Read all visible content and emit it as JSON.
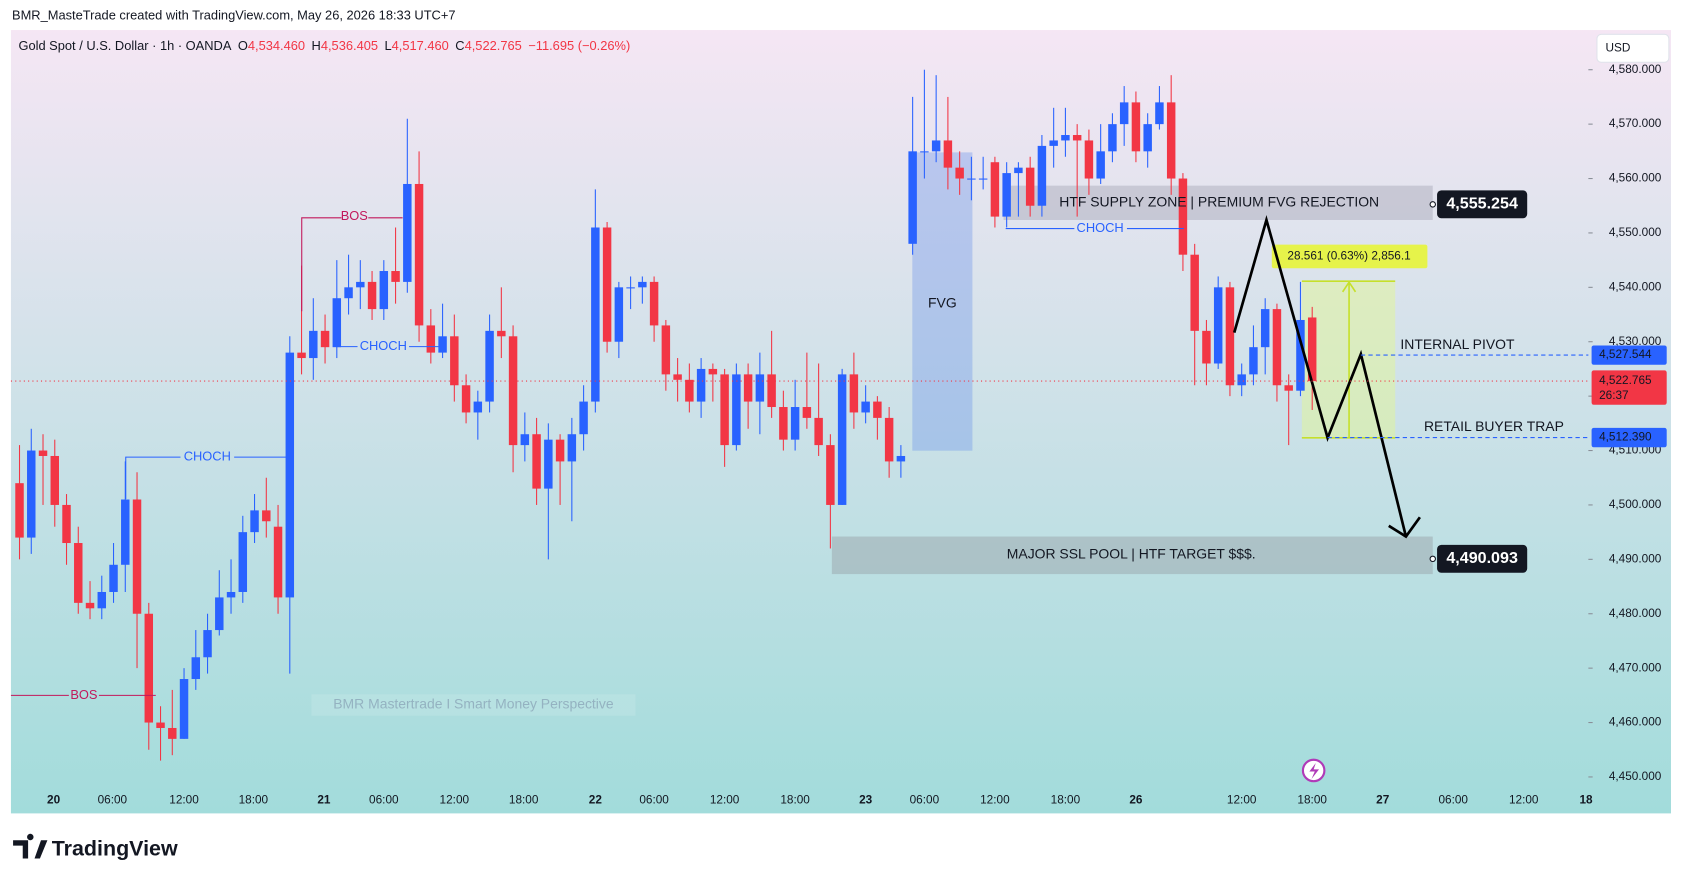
{
  "header": {
    "credit": "BMR_MasteTrade created with TradingView.com, May 26, 2026 18:33 UTC+7",
    "symbol": "Gold Spot / U.S. Dollar · 1h · OANDA",
    "ohlc": [
      {
        "key": "O",
        "value": "4,534.460"
      },
      {
        "key": "H",
        "value": "4,536.405"
      },
      {
        "key": "L",
        "value": "4,517.460"
      },
      {
        "key": "C",
        "value": "4,522.765"
      }
    ],
    "change": "−11.695 (−0.26%)",
    "currency": "USD"
  },
  "chart_data": {
    "type": "candlestick",
    "up_color": "#2962ff",
    "down_color": "#f23645",
    "open": [
      4504,
      4494,
      4510,
      4509,
      4500,
      4493,
      4482,
      4481,
      4484,
      4489,
      4501,
      4480,
      4460,
      4459,
      4457,
      4468,
      4472,
      4477,
      4483,
      4484,
      4495,
      4499,
      4496,
      4483,
      4528,
      4527,
      4532,
      4529,
      4538,
      4540,
      4541,
      4536,
      4543,
      4541,
      4559,
      4533,
      4528,
      4531,
      4522,
      4517,
      4519,
      4532,
      4531,
      4511,
      4513,
      4503,
      4512,
      4508,
      4513,
      4519,
      4551,
      4530,
      4540,
      4540,
      4541,
      4533,
      4524,
      4523,
      4519,
      4525,
      4524,
      4511,
      4524,
      4519,
      4524,
      4518,
      4512,
      4518,
      4516,
      4511,
      4500,
      4524,
      4517,
      4519,
      4516,
      4508,
      4548,
      4565,
      4565,
      4567,
      4562,
      4560,
      4560,
      4563,
      4553,
      4561,
      4562,
      4555,
      4566,
      4567,
      4568,
      4567,
      4560,
      4565,
      4570,
      4574,
      4565,
      4570,
      4574,
      4560,
      4546,
      4532,
      4526,
      4540,
      4522,
      4524,
      4529,
      4536,
      4522,
      4521,
      4534.46
    ],
    "high": [
      4511,
      4514,
      4513,
      4512,
      4502,
      4496,
      4486,
      4487,
      4493,
      4508,
      4506,
      4482,
      4463,
      4466,
      4470,
      4477,
      4480,
      4488,
      4490,
      4498,
      4502,
      4505,
      4500,
      4531,
      4544,
      4538,
      4535,
      4545,
      4546,
      4545,
      4543,
      4545,
      4551,
      4571,
      4565,
      4536,
      4537,
      4535,
      4524,
      4521,
      4535,
      4540,
      4533,
      4517,
      4516,
      4515,
      4513,
      4516,
      4522,
      4558,
      4552,
      4541,
      4542,
      4542,
      4542,
      4534,
      4527,
      4526,
      4527,
      4526,
      4525,
      4526,
      4526,
      4528,
      4532,
      4521,
      4523,
      4528,
      4526,
      4513,
      4525,
      4528,
      4522,
      4520,
      4518,
      4511,
      4575,
      4580,
      4579,
      4575,
      4565,
      4564,
      4564,
      4564,
      4563,
      4563,
      4564,
      4568,
      4573,
      4573,
      4570,
      4569,
      4570,
      4572,
      4577,
      4576,
      4572,
      4577,
      4579,
      4561,
      4548,
      4534,
      4542,
      4541,
      4526,
      4533,
      4538,
      4537,
      4524,
      4541,
      4536.405
    ],
    "low": [
      4490,
      4491,
      4500,
      4496,
      4489,
      4480,
      4479,
      4479,
      4482,
      4484,
      4470,
      4455,
      4453,
      4454,
      4457,
      4466,
      4469,
      4476,
      4480,
      4482,
      4493,
      4494,
      4480,
      4469,
      4524,
      4523,
      4526,
      4527,
      4535,
      4536,
      4534,
      4534,
      4537,
      4539,
      4530,
      4526,
      4527,
      4519,
      4515,
      4512,
      4517,
      4527,
      4506,
      4508,
      4500,
      4490,
      4500,
      4497,
      4510,
      4517,
      4528,
      4527,
      4536,
      4537,
      4530,
      4521,
      4519,
      4517,
      4516,
      4519,
      4507,
      4510,
      4514,
      4513,
      4516,
      4510,
      4510,
      4514,
      4509,
      4492,
      4500,
      4514,
      4515,
      4512,
      4505,
      4505,
      4546,
      4560,
      4563,
      4558,
      4557,
      4556,
      4558,
      4551,
      4551,
      4553,
      4553,
      4553,
      4562,
      4564,
      4553,
      4557,
      4559,
      4563,
      4566,
      4563,
      4562,
      4569,
      4557,
      4543,
      4522,
      4522,
      4525,
      4520,
      4520,
      4522,
      4524,
      4519,
      4511,
      4520,
      4517.46
    ],
    "close": [
      4494,
      4510,
      4509,
      4500,
      4493,
      4482,
      4481,
      4484,
      4489,
      4501,
      4480,
      4460,
      4459,
      4457,
      4468,
      4472,
      4477,
      4483,
      4484,
      4495,
      4499,
      4497,
      4483,
      4528,
      4527,
      4532,
      4529,
      4538,
      4540,
      4541,
      4536,
      4543,
      4541,
      4559,
      4533,
      4528,
      4531,
      4522,
      4517,
      4519,
      4532,
      4531,
      4511,
      4513,
      4503,
      4512,
      4508,
      4513,
      4519,
      4551,
      4530,
      4540,
      4540,
      4541,
      4533,
      4524,
      4523,
      4519,
      4525,
      4524,
      4511,
      4524,
      4519,
      4524,
      4518,
      4512,
      4518,
      4516,
      4511,
      4500,
      4524,
      4517,
      4519,
      4516,
      4508,
      4509,
      4565,
      4565,
      4567,
      4562,
      4560,
      4560,
      4560,
      4553,
      4561,
      4562,
      4555,
      4566,
      4567,
      4568,
      4567,
      4560,
      4565,
      4570,
      4574,
      4565,
      4570,
      4574,
      4560,
      4546,
      4532,
      4526,
      4540,
      4522,
      4524,
      4529,
      4536,
      4522,
      4521,
      4534,
      4522.765
    ],
    "xlim": [
      -0.73,
      133.5
    ],
    "xticks": [
      {
        "value": 2.9,
        "label": "20"
      },
      {
        "value": 7.9,
        "label": "06:00"
      },
      {
        "value": 14,
        "label": "12:00"
      },
      {
        "value": 19.9,
        "label": "18:00"
      },
      {
        "value": 25.9,
        "label": "21"
      },
      {
        "value": 31,
        "label": "06:00"
      },
      {
        "value": 37,
        "label": "12:00"
      },
      {
        "value": 42.9,
        "label": "18:00"
      },
      {
        "value": 49,
        "label": "22"
      },
      {
        "value": 54,
        "label": "06:00"
      },
      {
        "value": 60,
        "label": "12:00"
      },
      {
        "value": 66,
        "label": "18:00"
      },
      {
        "value": 72,
        "label": "23"
      },
      {
        "value": 77,
        "label": "06:00"
      },
      {
        "value": 83,
        "label": "12:00"
      },
      {
        "value": 89,
        "label": "18:00"
      },
      {
        "value": 95,
        "label": "26"
      },
      {
        "value": 104,
        "label": "12:00"
      },
      {
        "value": 110,
        "label": "18:00"
      },
      {
        "value": 116,
        "label": "27"
      },
      {
        "value": 122,
        "label": "06:00"
      },
      {
        "value": 128,
        "label": "12:00"
      },
      {
        "value": 133.3,
        "label": "18"
      }
    ],
    "ylim": [
      4443.3,
      4586.9
    ],
    "yticks": [
      {
        "value": 4450,
        "label": "4,450.000"
      },
      {
        "value": 4460,
        "label": "4,460.000"
      },
      {
        "value": 4470,
        "label": "4,470.000"
      },
      {
        "value": 4480,
        "label": "4,480.000"
      },
      {
        "value": 4490,
        "label": "4,490.000"
      },
      {
        "value": 4500,
        "label": "4,500.000"
      },
      {
        "value": 4510,
        "label": "4,510.000"
      },
      {
        "value": 4520,
        "label": "4,520.000"
      },
      {
        "value": 4530,
        "label": "4,530.000"
      },
      {
        "value": 4540,
        "label": "4,540.000"
      },
      {
        "value": 4550,
        "label": "4,550.000"
      },
      {
        "value": 4560,
        "label": "4,560.000"
      },
      {
        "value": 4570,
        "label": "4,570.000"
      },
      {
        "value": 4580,
        "label": "4,580.000"
      }
    ],
    "axis_labels": [
      {
        "value": 4527.544,
        "label": "4,527.544",
        "color": "#2962ff"
      },
      {
        "value": 4522.765,
        "label": "4,522.765",
        "color": "#f23645",
        "countdown": "26:37"
      },
      {
        "value": 4512.39,
        "label": "4,512.390",
        "color": "#2962ff"
      }
    ],
    "zones": [
      {
        "text": "HTF SUPPLY ZONE | PREMIUM FVG REJECTION",
        "price": {
          "value": 4555.254,
          "label": "4,555.254"
        }
      },
      {
        "text": "MAJOR SSL POOL | HTF TARGET $$$.",
        "price": {
          "value": 4490.093,
          "label": "4,490.093"
        }
      }
    ],
    "annotations": [
      "BOS",
      "CHOCH",
      "CHOCH",
      "BOS",
      "FVG",
      "CHOCH",
      "INTERNAL PIVOT",
      "RETAIL BUYER TRAP",
      "28.561 (0.63%) 2,856.1"
    ],
    "watermark": "BMR Mastertrade I Smart Money Perspective"
  },
  "footer": {
    "brand": "TradingView"
  }
}
